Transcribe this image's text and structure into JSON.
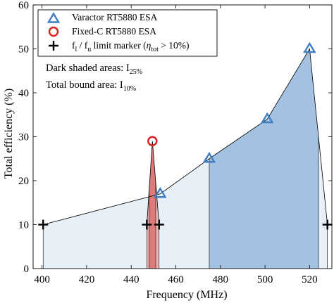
{
  "chart_data": {
    "type": "line",
    "xlabel": "Frequency (MHz)",
    "ylabel": "Total efficiency (%)",
    "xlim": [
      396,
      530
    ],
    "ylim": [
      0,
      60
    ],
    "xticks": [
      "400",
      "420",
      "440",
      "460",
      "480",
      "500",
      "520"
    ],
    "yticks": [
      "0",
      "10",
      "20",
      "30",
      "40",
      "50",
      "60"
    ],
    "grid": false,
    "legend_position": "top-left",
    "series": [
      {
        "name": "Varactor RT5880 ESA",
        "marker": "triangle",
        "color": "#3f7fc1",
        "x": [
          453,
          475,
          501,
          520
        ],
        "y": [
          17,
          25,
          34,
          50
        ]
      },
      {
        "name": "Fixed-C RT5880 ESA",
        "marker": "circle",
        "color": "#dd1f1f",
        "x": [
          449.5
        ],
        "y": [
          29
        ]
      },
      {
        "name": "f_l / f_u limit marker (η_tot > 10%)",
        "marker": "plus",
        "color": "#000000",
        "x": [
          400.5,
          447,
          452.5,
          528
        ],
        "y": [
          10,
          10,
          10,
          10
        ]
      }
    ],
    "envelope": {
      "x": [
        400.5,
        453,
        475,
        501,
        520,
        528
      ],
      "y": [
        10,
        17,
        25,
        34,
        50,
        10
      ]
    },
    "fixed_envelope": {
      "x": [
        447,
        449.5,
        452.5
      ],
      "y": [
        10,
        29,
        10
      ]
    },
    "shaded_areas": {
      "bound_10": [
        400.5,
        528
      ],
      "dark_25_varactor": [
        475,
        524
      ],
      "dark_25_fixed": [
        448,
        451
      ]
    },
    "legend": {
      "entries": [
        {
          "main": "Varactor RT5880 ESA"
        },
        {
          "main": "Fixed-C RT5880 ESA"
        },
        {
          "main": "f",
          "sub1": "l",
          "mid": " / f",
          "sub2": "u",
          "tail": " limit marker (",
          "eta": "η",
          "sub3": "tot",
          "end": " > 10%)"
        }
      ]
    },
    "annotations": {
      "dark": {
        "text": "Dark shaded areas: I",
        "sub": "25%"
      },
      "bound": {
        "text": "Total bound area: I",
        "sub": "10%"
      }
    }
  },
  "colors": {
    "light_fill": "#e7eff7",
    "dark_fill": "#a3c2e1",
    "fixed_fill": "#f2b8b8",
    "blue": "#3f7fc1",
    "red": "#dd1f1f"
  }
}
